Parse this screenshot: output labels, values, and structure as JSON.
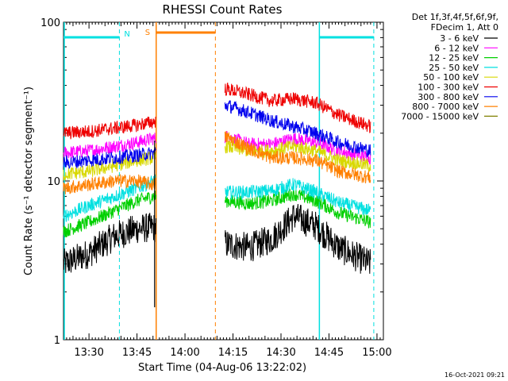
{
  "chart_data": {
    "type": "line",
    "title": "RHESSI Count Rates",
    "xlabel": "Start Time (04-Aug-06 13:22:02)",
    "ylabel": "Count Rate (s⁻¹ detector segment⁻¹)",
    "y_scale": "log",
    "ylim": [
      1,
      100
    ],
    "xlim": [
      "13:22:02",
      "15:02:00"
    ],
    "x_ticks": [
      "13:30",
      "13:45",
      "14:00",
      "14:15",
      "14:30",
      "14:45",
      "15:00"
    ],
    "y_ticks": [
      "1",
      "10",
      "100"
    ],
    "legend": {
      "position": "right",
      "header": [
        "Det 1f,3f,4f,5f,6f,9f,",
        "FDecim 1, Att 0"
      ]
    },
    "annotations": [
      {
        "label": "N",
        "color": "#00e0e0"
      },
      {
        "label": "S",
        "color": "#ff8000"
      }
    ],
    "night_intervals": [
      [
        "13:22:02",
        "13:39:30"
      ],
      [
        "14:42:00",
        "14:59:00"
      ]
    ],
    "saa_interval": [
      "13:51:00",
      "14:09:30"
    ],
    "data_gaps": [
      [
        "13:51:00",
        "14:12:30"
      ]
    ],
    "series": [
      {
        "name": "3 - 6 keV",
        "color": "#000000",
        "x": [
          "13:22",
          "13:30",
          "13:38",
          "13:45",
          "13:50",
          "14:13",
          "14:20",
          "14:27",
          "14:34",
          "14:41",
          "14:48",
          "14:58"
        ],
        "values": [
          3.0,
          3.5,
          4.5,
          5.0,
          5.1,
          4.0,
          3.8,
          4.3,
          6.0,
          5.2,
          3.8,
          3.0
        ]
      },
      {
        "name": "6 - 12 keV",
        "color": "#ff00ff",
        "x": [
          "13:22",
          "13:30",
          "13:38",
          "13:45",
          "13:50",
          "14:13",
          "14:20",
          "14:27",
          "14:34",
          "14:41",
          "14:48",
          "14:58"
        ],
        "values": [
          15.0,
          15.5,
          16.5,
          17.5,
          18.5,
          19.0,
          17.0,
          17.0,
          18.5,
          17.5,
          15.5,
          14.0
        ]
      },
      {
        "name": "12 - 25 keV",
        "color": "#00d000",
        "x": [
          "13:22",
          "13:30",
          "13:38",
          "13:45",
          "13:50",
          "14:13",
          "14:20",
          "14:27",
          "14:34",
          "14:41",
          "14:48",
          "14:58"
        ],
        "values": [
          4.8,
          5.5,
          6.5,
          7.5,
          8.0,
          7.5,
          7.2,
          7.5,
          8.3,
          7.5,
          6.3,
          5.5
        ]
      },
      {
        "name": "25 - 50 keV",
        "color": "#00e0e0",
        "x": [
          "13:22",
          "13:30",
          "13:38",
          "13:45",
          "13:50",
          "14:13",
          "14:20",
          "14:27",
          "14:34",
          "14:41",
          "14:48",
          "14:58"
        ],
        "values": [
          6.0,
          7.0,
          8.0,
          9.0,
          10.0,
          8.5,
          8.5,
          8.7,
          9.5,
          8.5,
          7.3,
          6.5
        ]
      },
      {
        "name": "50 - 100 keV",
        "color": "#d8d800",
        "x": [
          "13:22",
          "13:30",
          "13:38",
          "13:45",
          "13:50",
          "14:13",
          "14:20",
          "14:27",
          "14:34",
          "14:41",
          "14:48",
          "14:58"
        ],
        "values": [
          11.0,
          11.5,
          12.5,
          13.5,
          14.0,
          16.5,
          15.5,
          15.5,
          16.5,
          15.5,
          13.5,
          12.5
        ]
      },
      {
        "name": "100 - 300 keV",
        "color": "#ee0000",
        "x": [
          "13:22",
          "13:30",
          "13:38",
          "13:45",
          "13:50",
          "14:13",
          "14:20",
          "14:27",
          "14:34",
          "14:41",
          "14:48",
          "14:58"
        ],
        "values": [
          20.0,
          20.5,
          21.5,
          22.5,
          23.5,
          38.0,
          35.0,
          32.0,
          33.0,
          31.0,
          26.0,
          22.0
        ]
      },
      {
        "name": "300 - 800 keV",
        "color": "#0000ee",
        "x": [
          "13:22",
          "13:30",
          "13:38",
          "13:45",
          "13:50",
          "14:13",
          "14:20",
          "14:27",
          "14:34",
          "14:41",
          "14:48",
          "14:58"
        ],
        "values": [
          13.0,
          13.5,
          14.0,
          14.5,
          15.0,
          30.0,
          27.0,
          24.0,
          22.0,
          20.0,
          17.5,
          15.5
        ]
      },
      {
        "name": "800 - 7000 keV",
        "color": "#ff8000",
        "x": [
          "13:22",
          "13:30",
          "13:38",
          "13:45",
          "13:50",
          "14:13",
          "14:20",
          "14:27",
          "14:34",
          "14:41",
          "14:48",
          "14:58"
        ],
        "values": [
          9.0,
          9.5,
          10.0,
          10.0,
          9.5,
          19.0,
          16.0,
          14.0,
          14.0,
          13.5,
          11.5,
          10.5
        ]
      },
      {
        "name": "7000 - 15000 keV",
        "color": "#808000",
        "x": [],
        "values": []
      }
    ]
  },
  "footer": {
    "timestamp": "16-Oct-2021 09:21"
  }
}
